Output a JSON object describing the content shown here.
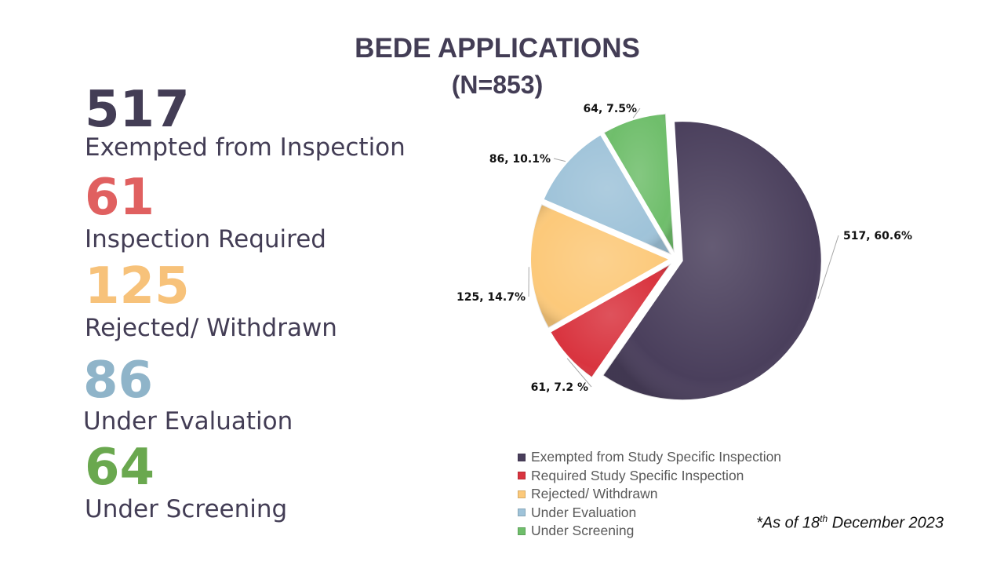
{
  "title": {
    "line1": "BEDE APPLICATIONS",
    "line2": "(N=853)"
  },
  "stats": [
    {
      "value": "517",
      "label": "Exempted from Inspection",
      "color": "#433d55"
    },
    {
      "value": "61",
      "label": "Inspection Required",
      "color": "#e06060"
    },
    {
      "value": "125",
      "label": "Rejected/ Withdrawn",
      "color": "#f7c27a"
    },
    {
      "value": "86",
      "label": "Under Evaluation",
      "color": "#8fb4c9"
    },
    {
      "value": "64",
      "label": "Under Screening",
      "color": "#6aa84f"
    }
  ],
  "chart_data": {
    "type": "pie",
    "title": "BEDE APPLICATIONS (N=853)",
    "slices": [
      {
        "name": "Exempted from Study Specific Inspection",
        "value": 517,
        "percent": 60.6,
        "label": "517, 60.6%",
        "color": "#4a3f5c"
      },
      {
        "name": "Required Study Specific Inspection",
        "value": 61,
        "percent": 7.2,
        "label": "61, 7.2 %",
        "color": "#d9343f"
      },
      {
        "name": "Rejected/ Withdrawn",
        "value": 125,
        "percent": 14.7,
        "label": "125, 14.7%",
        "color": "#fcc97a"
      },
      {
        "name": "Under Evaluation",
        "value": 86,
        "percent": 10.1,
        "label": "86, 10.1%",
        "color": "#9fc3d9"
      },
      {
        "name": "Under Screening",
        "value": 64,
        "percent": 7.5,
        "label": "64, 7.5%",
        "color": "#6fbe6b"
      }
    ],
    "legend_position": "bottom-right"
  },
  "footnote": {
    "prefix": "*As of 18",
    "sup": "th",
    "suffix": " December 2023"
  }
}
